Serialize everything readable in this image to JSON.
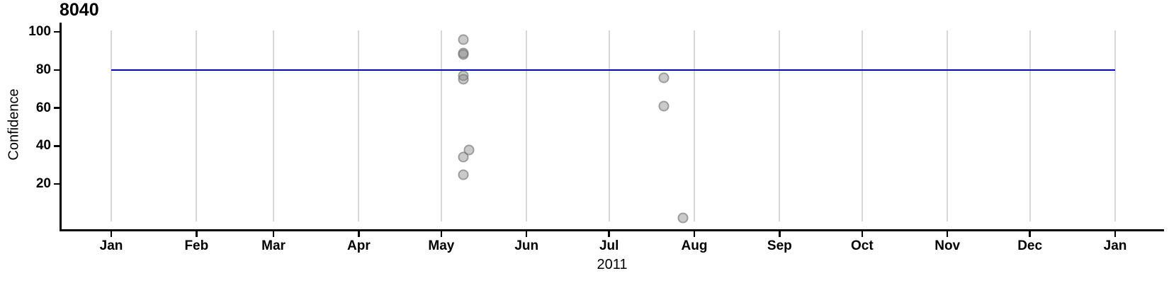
{
  "title": "8040",
  "axes": {
    "y_label": "Confidence",
    "x_label": "2011",
    "y_ticks": [
      20,
      40,
      60,
      80,
      100
    ],
    "x_tick_labels": [
      "Jan",
      "Feb",
      "Mar",
      "Apr",
      "May",
      "Jun",
      "Jul",
      "Aug",
      "Sep",
      "Oct",
      "Nov",
      "Dec",
      "Jan"
    ]
  },
  "colors": {
    "reference_line": "#0000bd",
    "gridline": "#d8d8d8",
    "axis": "#000000",
    "point_fill_gray": "#808080"
  },
  "chart_data": {
    "type": "scatter",
    "title": "8040",
    "xlabel": "2011",
    "ylabel": "Confidence",
    "x_axis_type": "date",
    "x_range": [
      "2011-01-01",
      "2012-01-01"
    ],
    "x_tick_labels": [
      "Jan",
      "Feb",
      "Mar",
      "Apr",
      "May",
      "Jun",
      "Jul",
      "Aug",
      "Sep",
      "Oct",
      "Nov",
      "Dec",
      "Jan"
    ],
    "ylim": [
      0,
      103
    ],
    "y_ticks": [
      20,
      40,
      60,
      80,
      100
    ],
    "grid": "vertical-month-gridlines-only",
    "legend_position": "none",
    "reference_line": {
      "orientation": "horizontal",
      "y": 80
    },
    "points": [
      {
        "date": "2011-05-09",
        "value": 96
      },
      {
        "date": "2011-05-09",
        "value": 89
      },
      {
        "date": "2011-05-09",
        "value": 88
      },
      {
        "date": "2011-05-09",
        "value": 77
      },
      {
        "date": "2011-05-09",
        "value": 75
      },
      {
        "date": "2011-05-11",
        "value": 38
      },
      {
        "date": "2011-05-09",
        "value": 34
      },
      {
        "date": "2011-05-09",
        "value": 25
      },
      {
        "date": "2011-07-21",
        "value": 76
      },
      {
        "date": "2011-07-21",
        "value": 61
      },
      {
        "date": "2011-07-28",
        "value": 2
      }
    ]
  }
}
